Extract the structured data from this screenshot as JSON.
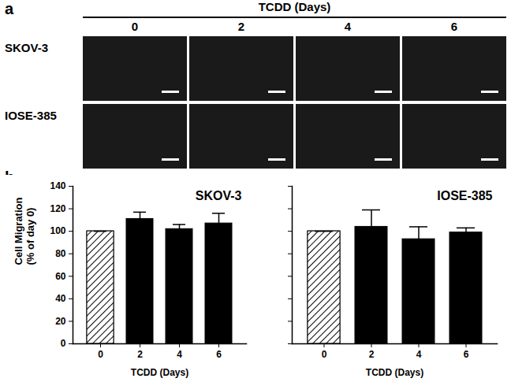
{
  "panel_labels": [
    "a",
    "b"
  ],
  "image_grid": {
    "header": "TCDD (Days)",
    "columns": [
      "0",
      "2",
      "4",
      "6"
    ],
    "rows": [
      "SKOV-3",
      "IOSE-385"
    ]
  },
  "chart_data": [
    {
      "type": "bar",
      "title": "SKOV-3",
      "x_label": "TCDD (Days)",
      "y_label": [
        "Cell Migration",
        "(% of day 0)"
      ],
      "categories": [
        "0",
        "2",
        "4",
        "6"
      ],
      "values": [
        100,
        111,
        102,
        107
      ],
      "errors": [
        0,
        6,
        4,
        9
      ],
      "colors": [
        "#ffffff",
        "#000000",
        "#000000",
        "#000000"
      ],
      "ylim": [
        0,
        140
      ],
      "yticks": [
        0,
        20,
        40,
        60,
        80,
        100,
        120,
        140
      ]
    },
    {
      "type": "bar",
      "title": "IOSE-385",
      "x_label": "TCDD (Days)",
      "categories": [
        "0",
        "2",
        "4",
        "6"
      ],
      "values": [
        100,
        104,
        93,
        99
      ],
      "errors": [
        0,
        15,
        11,
        4
      ],
      "colors": [
        "#ffffff",
        "#000000",
        "#000000",
        "#000000"
      ],
      "ylim": [
        0,
        140
      ],
      "yticks": [
        0,
        20,
        40,
        60,
        80,
        100,
        120,
        140
      ],
      "tick_labels": "x"
    }
  ]
}
